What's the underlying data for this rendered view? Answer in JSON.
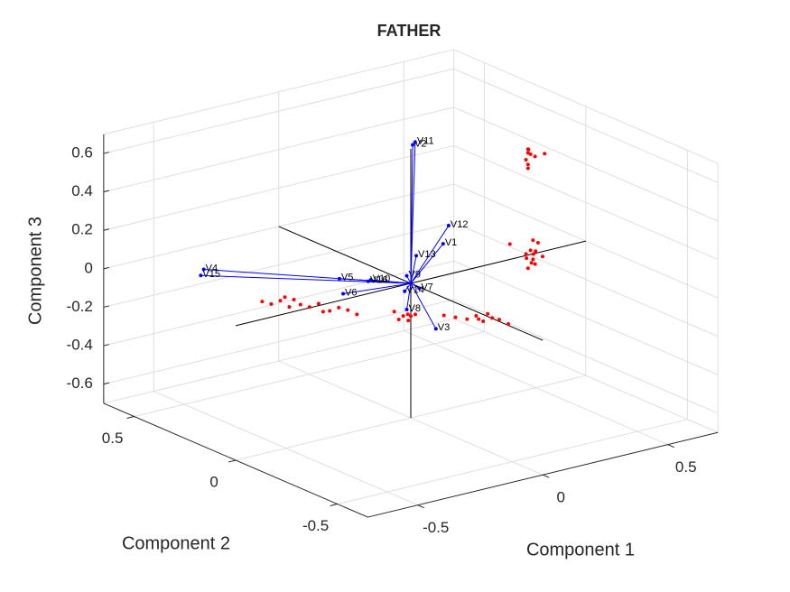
{
  "chart_data": {
    "type": "biplot3d",
    "title": "FATHER",
    "xlabel": "Component 1",
    "ylabel": "Component 2",
    "zlabel": "Component 3",
    "xlim": [
      -0.7,
      0.7
    ],
    "ylim": [
      -0.65,
      0.65
    ],
    "zlim": [
      -0.7,
      0.7
    ],
    "xticks": [
      -0.5,
      0,
      0.5
    ],
    "yticks": [
      -0.5,
      0,
      0.5
    ],
    "zticks": [
      -0.6,
      -0.4,
      -0.2,
      0,
      0.2,
      0.4,
      0.6
    ],
    "grid": true,
    "vectors": {
      "color": "#0000ff",
      "labels": [
        "V1",
        "V2",
        "V3",
        "V4",
        "V5",
        "V6",
        "V7",
        "V8",
        "V9",
        "V10",
        "V11",
        "V12",
        "V13",
        "V14",
        "V15",
        "V16"
      ],
      "x": [
        0.17,
        0.04,
        0.08,
        -0.3,
        -0.05,
        -0.1,
        0.05,
        0,
        0,
        -0.03,
        0.05,
        0.2,
        0.03,
        0,
        -0.32,
        -0.04
      ],
      "y": [
        0.05,
        0.04,
        -0.025,
        0.65,
        0.29,
        0.21,
        0.02,
        0.02,
        0.02,
        0.16,
        0.04,
        0.06,
        0.01,
        0.03,
        0.64,
        0.16
      ],
      "z": [
        0.13,
        0.69,
        -0.25,
        -0.129,
        -0.092,
        -0.118,
        -0.05,
        -0.145,
        0.03,
        -0.045,
        0.7,
        0.21,
        0.13,
        -0.055,
        -0.15,
        -0.05
      ]
    },
    "scatter": {
      "color": "#ff0000",
      "x": [
        0.55,
        0.55,
        0.56,
        0.55,
        0.55,
        0.56,
        0.55,
        0.57,
        0.6,
        0.57,
        0.56,
        0.58,
        0.57,
        0.55,
        0.59,
        0.56,
        0.58,
        0.57,
        0.6,
        0.55,
        0.58,
        0.51,
        -0.18,
        -0.16,
        -0.14,
        -0.12,
        -0.1,
        -0.08,
        -0.06,
        -0.04,
        -0.02,
        0,
        0.02,
        -0.11,
        -0.05,
        -0.13,
        -0.03,
        -0.04,
        -0.02,
        0,
        -0.05,
        -0.01,
        0.01,
        0.1,
        0.13,
        0.16,
        0.18,
        0.2,
        0.22,
        0.24,
        0.26,
        0.19,
        0.21
      ],
      "y": [
        0.1,
        0.1,
        0.1,
        0.11,
        0.1,
        0.11,
        0.1,
        0.09,
        0.08,
        0.1,
        0.1,
        0.11,
        0.09,
        0.1,
        0.1,
        0.12,
        0.1,
        0.1,
        0.09,
        0.11,
        0.12,
        0.14,
        0.51,
        0.49,
        0.47,
        0.45,
        0.42,
        0.4,
        0.38,
        0.35,
        0.33,
        0.31,
        0.29,
        0.44,
        0.37,
        0.46,
        0,
        0.01,
        -0.01,
        0,
        0.02,
        0,
        -0.01,
        -0.04,
        -0.06,
        -0.08,
        -0.1,
        -0.11,
        -0.13,
        -0.14,
        -0.16,
        -0.1,
        -0.12
      ],
      "z": [
        0.46,
        0.48,
        0.45,
        0.42,
        0.4,
        0.47,
        0.38,
        0.44,
        0.45,
        -0.1,
        -0.05,
        -0.08,
        -0.12,
        -0.14,
        -0.02,
        -0.1,
        -0.06,
        0,
        -0.09,
        -0.07,
        -0.13,
        -0.02,
        -0.27,
        -0.28,
        -0.26,
        -0.29,
        -0.27,
        -0.28,
        -0.26,
        -0.29,
        -0.27,
        -0.28,
        -0.3,
        -0.25,
        -0.3,
        -0.24,
        -0.16,
        -0.18,
        -0.15,
        -0.17,
        -0.14,
        -0.19,
        -0.16,
        -0.18,
        -0.19,
        -0.2,
        -0.18,
        -0.21,
        -0.19,
        -0.2,
        -0.22,
        -0.2,
        -0.17
      ]
    }
  }
}
